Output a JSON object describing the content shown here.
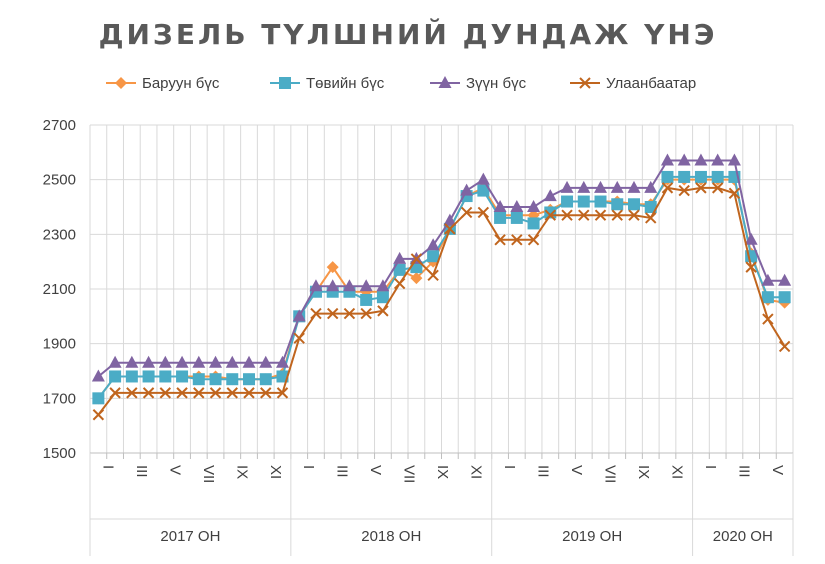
{
  "chart_data": {
    "type": "line",
    "title": "ДИЗЕЛЬ ТҮЛШНИЙ ДУНДАЖ ҮНЭ",
    "xlabel": "",
    "ylabel": "",
    "ylim": [
      1500,
      2700
    ],
    "yticks": [
      1500,
      1700,
      1900,
      2100,
      2300,
      2500,
      2700
    ],
    "grid": true,
    "legend_position": "top",
    "x_tick_labels": [
      "I",
      "III",
      "V",
      "VII",
      "IX",
      "XI",
      "I",
      "III",
      "V",
      "VII",
      "IX",
      "XI",
      "I",
      "III",
      "V",
      "VII",
      "IX",
      "XI",
      "I",
      "III",
      "V"
    ],
    "year_groups": [
      {
        "label": "2017 ОН",
        "months": 12
      },
      {
        "label": "2018 ОН",
        "months": 12
      },
      {
        "label": "2019 ОН",
        "months": 12
      },
      {
        "label": "2020 ОН",
        "months": 6
      }
    ],
    "series": [
      {
        "name": "Баруун бүс",
        "color": "#F79646",
        "marker": "diamond",
        "values": [
          1700,
          1780,
          1780,
          1780,
          1780,
          1780,
          1780,
          1780,
          1770,
          1770,
          1770,
          1790,
          2000,
          2090,
          2180,
          2090,
          2090,
          2090,
          2170,
          2140,
          2200,
          2320,
          2440,
          2470,
          2370,
          2370,
          2370,
          2390,
          2420,
          2420,
          2420,
          2420,
          2410,
          2410,
          2500,
          2500,
          2500,
          2500,
          2500,
          2230,
          2060,
          2050
        ]
      },
      {
        "name": "Төвийн бүс",
        "color": "#4BACC6",
        "marker": "square",
        "values": [
          1700,
          1780,
          1780,
          1780,
          1780,
          1780,
          1770,
          1770,
          1770,
          1770,
          1770,
          1780,
          2000,
          2090,
          2090,
          2090,
          2060,
          2070,
          2170,
          2180,
          2220,
          2320,
          2440,
          2460,
          2360,
          2360,
          2340,
          2380,
          2420,
          2420,
          2420,
          2410,
          2410,
          2400,
          2510,
          2510,
          2510,
          2510,
          2510,
          2220,
          2070,
          2070
        ]
      },
      {
        "name": "Зүүн бүс",
        "color": "#8064A2",
        "marker": "triangle",
        "values": [
          1780,
          1830,
          1830,
          1830,
          1830,
          1830,
          1830,
          1830,
          1830,
          1830,
          1830,
          1830,
          2000,
          2110,
          2110,
          2110,
          2110,
          2110,
          2210,
          2210,
          2260,
          2350,
          2460,
          2500,
          2400,
          2400,
          2400,
          2440,
          2470,
          2470,
          2470,
          2470,
          2470,
          2470,
          2570,
          2570,
          2570,
          2570,
          2570,
          2280,
          2130,
          2130
        ]
      },
      {
        "name": "Улаанбаатар",
        "color": "#C0651E",
        "marker": "x",
        "values": [
          1640,
          1720,
          1720,
          1720,
          1720,
          1720,
          1720,
          1720,
          1720,
          1720,
          1720,
          1720,
          1920,
          2010,
          2010,
          2010,
          2010,
          2020,
          2120,
          2210,
          2150,
          2320,
          2380,
          2380,
          2280,
          2280,
          2280,
          2370,
          2370,
          2370,
          2370,
          2370,
          2370,
          2360,
          2470,
          2460,
          2470,
          2470,
          2450,
          2180,
          1990,
          1890
        ]
      }
    ]
  }
}
